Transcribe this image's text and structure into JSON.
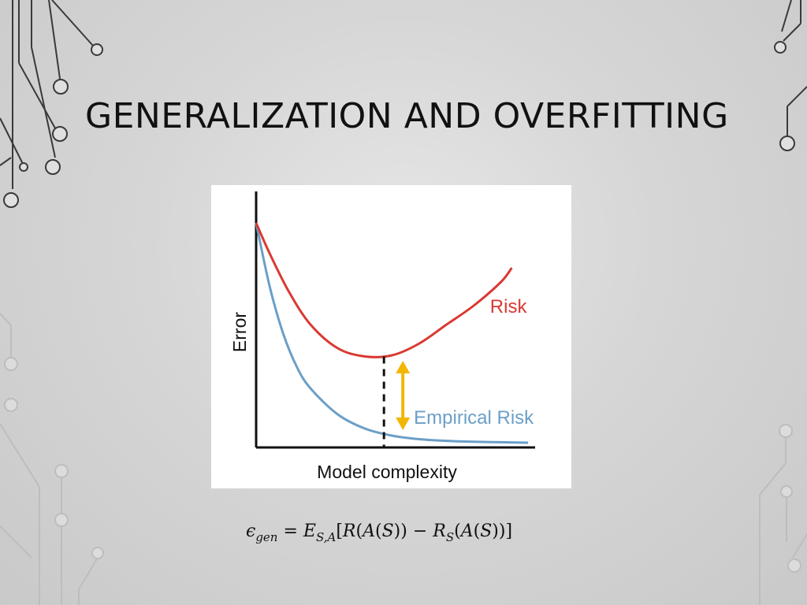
{
  "slide": {
    "title": "GENERALIZATION AND OVERFITTING"
  },
  "formula": {
    "lhs_symbol": "ϵ",
    "lhs_sub": "gen",
    "equals": "=",
    "expect_symbol": "E",
    "expect_sub": "S,A",
    "bracket_open": "[",
    "risk_term": "R",
    "paren_open": "(",
    "algo": "A",
    "sample_paren_open": "(",
    "sample": "S",
    "sample_paren_close": ")",
    "paren_close": ")",
    "minus": "−",
    "emp_risk": "R",
    "emp_sub": "S",
    "paren_open2": "(",
    "algo2": "A",
    "sample_paren_open2": "(",
    "sample2": "S",
    "sample_paren_close2": ")",
    "paren_close2": ")",
    "bracket_close": "]"
  },
  "chart_data": {
    "type": "line",
    "xlabel": "Model complexity",
    "ylabel": "Error",
    "series": [
      {
        "name": "Risk",
        "color": "#d93a32",
        "x": [
          0,
          0.05,
          0.12,
          0.2,
          0.3,
          0.4,
          0.5,
          0.6,
          0.7,
          0.8,
          0.9,
          0.94
        ],
        "y": [
          0.95,
          0.82,
          0.66,
          0.52,
          0.42,
          0.385,
          0.39,
          0.44,
          0.52,
          0.6,
          0.7,
          0.76
        ]
      },
      {
        "name": "Empirical Risk",
        "color": "#6b9fc8",
        "x": [
          0,
          0.05,
          0.1,
          0.15,
          0.2,
          0.3,
          0.4,
          0.5,
          0.6,
          0.7,
          0.8,
          0.9,
          1.0
        ],
        "y": [
          0.95,
          0.68,
          0.48,
          0.34,
          0.25,
          0.14,
          0.08,
          0.05,
          0.035,
          0.028,
          0.024,
          0.022,
          0.02
        ]
      }
    ],
    "optimal_x": 0.47,
    "annotation": "generalization gap arrow",
    "annotation_color": "#f2b705",
    "xlim": [
      0,
      1.02
    ],
    "ylim": [
      0,
      1
    ]
  }
}
